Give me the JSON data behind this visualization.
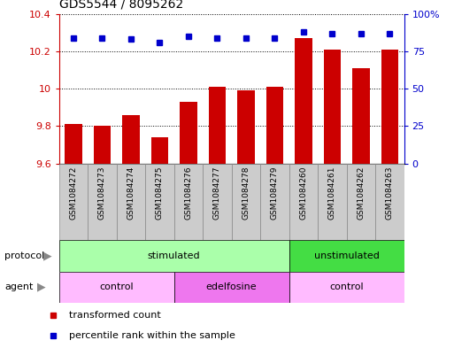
{
  "title": "GDS5544 / 8095262",
  "samples": [
    "GSM1084272",
    "GSM1084273",
    "GSM1084274",
    "GSM1084275",
    "GSM1084276",
    "GSM1084277",
    "GSM1084278",
    "GSM1084279",
    "GSM1084260",
    "GSM1084261",
    "GSM1084262",
    "GSM1084263"
  ],
  "bar_values": [
    9.81,
    9.8,
    9.86,
    9.74,
    9.93,
    10.01,
    9.99,
    10.01,
    10.27,
    10.21,
    10.11,
    10.21
  ],
  "dot_values": [
    84,
    84,
    83,
    81,
    85,
    84,
    84,
    84,
    88,
    87,
    87,
    87
  ],
  "ylim_left": [
    9.6,
    10.4
  ],
  "ylim_right": [
    0,
    100
  ],
  "yticks_left": [
    9.6,
    9.8,
    10.0,
    10.2,
    10.4
  ],
  "yticks_right": [
    0,
    25,
    50,
    75,
    100
  ],
  "ytick_labels_left": [
    "9.6",
    "9.8",
    "10",
    "10.2",
    "10.4"
  ],
  "ytick_labels_right": [
    "0",
    "25",
    "50",
    "75",
    "100%"
  ],
  "bar_color": "#cc0000",
  "dot_color": "#0000cc",
  "protocol_groups": [
    {
      "label": "stimulated",
      "start": 0,
      "end": 8,
      "color": "#aaffaa"
    },
    {
      "label": "unstimulated",
      "start": 8,
      "end": 12,
      "color": "#44dd44"
    }
  ],
  "agent_groups": [
    {
      "label": "control",
      "start": 0,
      "end": 4,
      "color": "#ffbbff"
    },
    {
      "label": "edelfosine",
      "start": 4,
      "end": 8,
      "color": "#ee77ee"
    },
    {
      "label": "control",
      "start": 8,
      "end": 12,
      "color": "#ffbbff"
    }
  ],
  "legend_items": [
    {
      "label": "transformed count",
      "color": "#cc0000"
    },
    {
      "label": "percentile rank within the sample",
      "color": "#0000cc"
    }
  ],
  "protocol_label": "protocol",
  "agent_label": "agent",
  "sample_bg_color": "#cccccc",
  "sample_border_color": "#888888"
}
